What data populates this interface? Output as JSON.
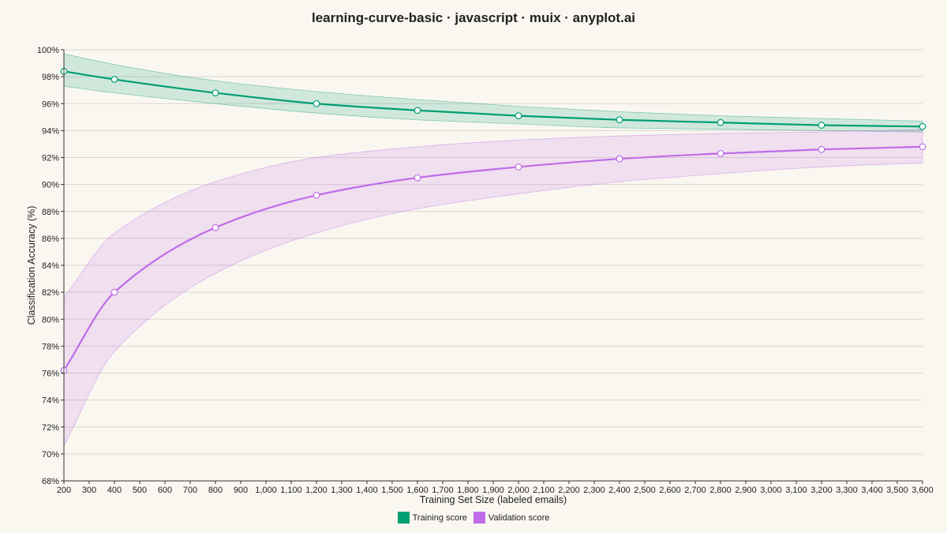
{
  "chart_data": {
    "type": "line",
    "title": "learning-curve-basic · javascript · muix · anyplot.ai",
    "xlabel": "Training Set Size (labeled emails)",
    "ylabel": "Classification Accuracy (%)",
    "xlim": [
      200,
      3600
    ],
    "ylim": [
      68,
      100
    ],
    "x_ticks": [
      200,
      300,
      400,
      500,
      600,
      700,
      800,
      900,
      1000,
      1100,
      1200,
      1300,
      1400,
      1500,
      1600,
      1700,
      1800,
      1900,
      2000,
      2100,
      2200,
      2300,
      2400,
      2500,
      2600,
      2700,
      2800,
      2900,
      3000,
      3100,
      3200,
      3300,
      3400,
      3500,
      3600
    ],
    "x_tick_labels": [
      "200",
      "300",
      "400",
      "500",
      "600",
      "700",
      "800",
      "900",
      "1,000",
      "1,100",
      "1,200",
      "1,300",
      "1,400",
      "1,500",
      "1,600",
      "1,700",
      "1,800",
      "1,900",
      "2,000",
      "2,100",
      "2,200",
      "2,300",
      "2,400",
      "2,500",
      "2,600",
      "2,700",
      "2,800",
      "2,900",
      "3,000",
      "3,100",
      "3,200",
      "3,300",
      "3,400",
      "3,500",
      "3,600"
    ],
    "y_ticks": [
      68,
      70,
      72,
      74,
      76,
      78,
      80,
      82,
      84,
      86,
      88,
      90,
      92,
      94,
      96,
      98,
      100
    ],
    "y_tick_labels": [
      "68%",
      "70%",
      "72%",
      "74%",
      "76%",
      "78%",
      "80%",
      "82%",
      "84%",
      "86%",
      "88%",
      "90%",
      "92%",
      "94%",
      "96%",
      "98%",
      "100%"
    ],
    "grid": true,
    "legend_position": "bottom-center",
    "x": [
      200,
      400,
      800,
      1200,
      1600,
      2000,
      2400,
      2800,
      3200,
      3600
    ],
    "series": [
      {
        "name": "Training score",
        "color": "#009e73",
        "values": [
          98.4,
          97.8,
          96.8,
          96.0,
          95.5,
          95.1,
          94.8,
          94.6,
          94.4,
          94.3
        ],
        "upper": [
          99.7,
          98.9,
          97.7,
          96.9,
          96.3,
          95.8,
          95.4,
          95.1,
          94.9,
          94.7
        ],
        "lower": [
          97.3,
          96.8,
          96.0,
          95.3,
          94.8,
          94.5,
          94.2,
          94.1,
          94.0,
          93.9
        ]
      },
      {
        "name": "Validation score",
        "color": "#bf6de8",
        "values": [
          76.2,
          82.0,
          86.8,
          89.2,
          90.5,
          91.3,
          91.9,
          92.3,
          92.6,
          92.8
        ],
        "upper": [
          81.6,
          86.4,
          90.2,
          92.0,
          92.8,
          93.3,
          93.6,
          93.8,
          93.9,
          94.1
        ],
        "lower": [
          70.6,
          77.6,
          83.4,
          86.4,
          88.2,
          89.3,
          90.2,
          90.8,
          91.3,
          91.6
        ]
      }
    ]
  }
}
